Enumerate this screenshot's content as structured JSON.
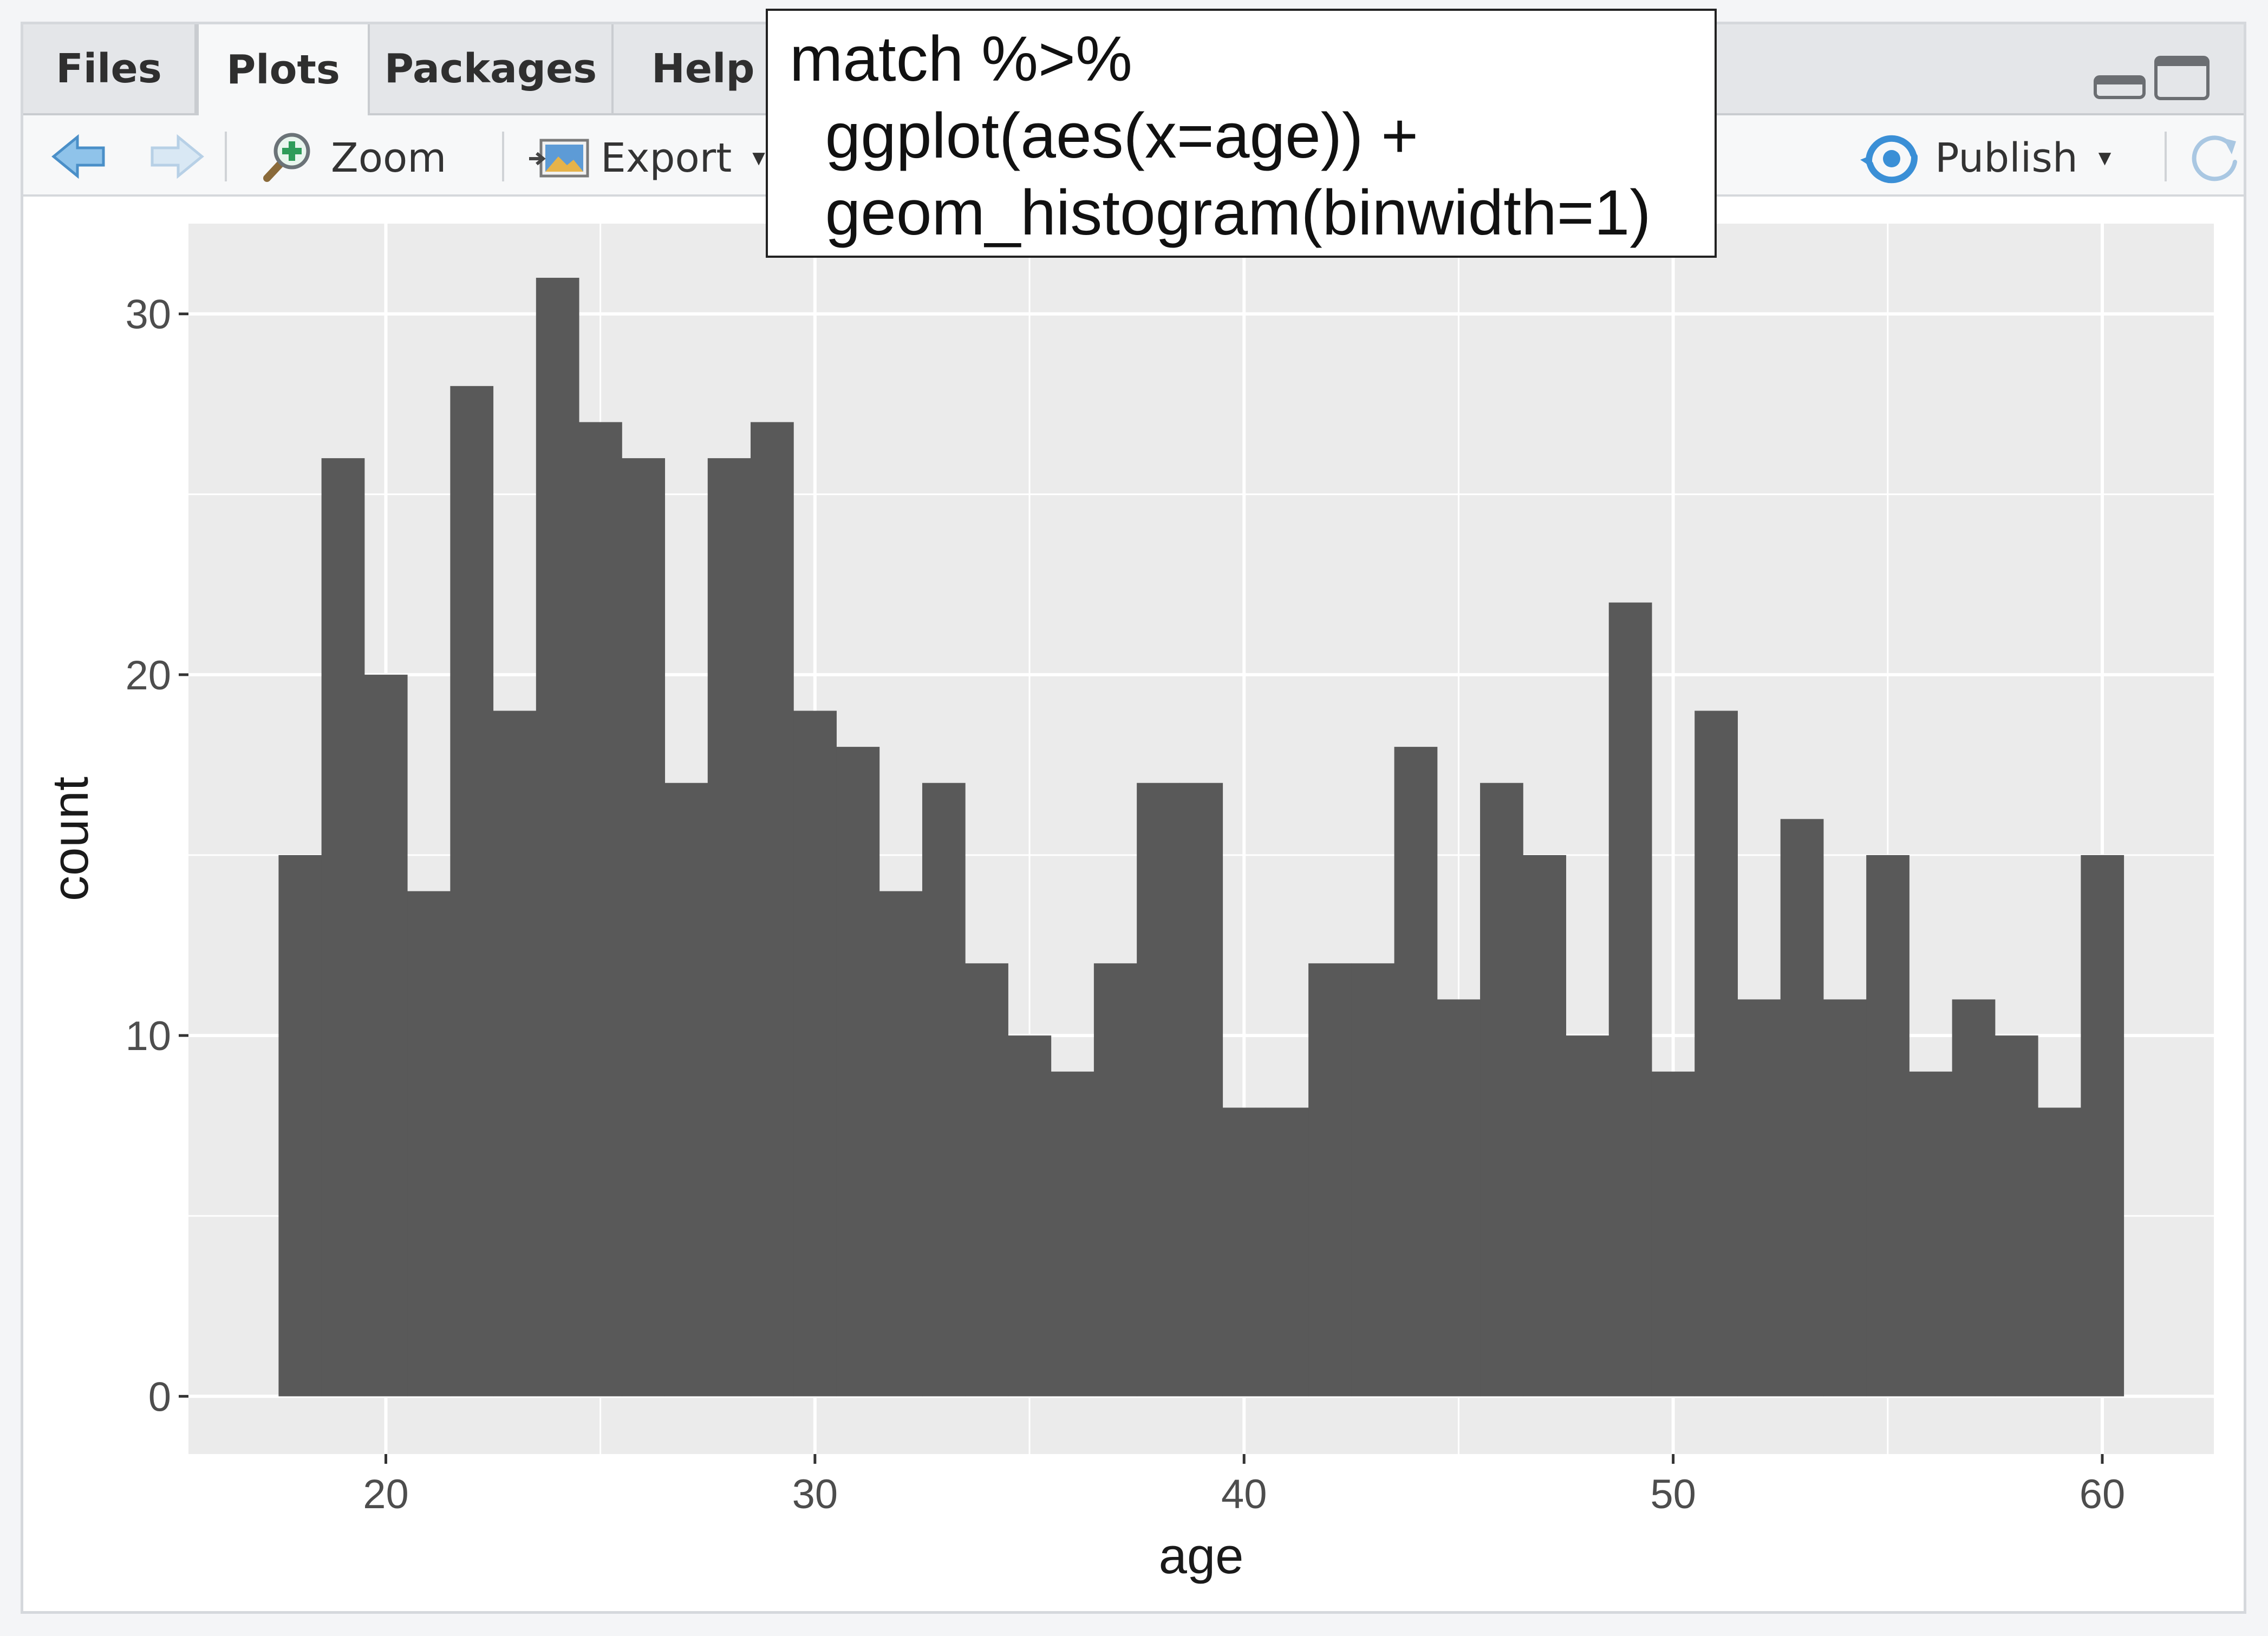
{
  "tabs": [
    {
      "label": "Files",
      "active": false
    },
    {
      "label": "Plots",
      "active": true
    },
    {
      "label": "Packages",
      "active": false
    },
    {
      "label": "Help",
      "active": false
    }
  ],
  "toolbar": {
    "zoom_label": "Zoom",
    "export_label": "Export",
    "publish_label": "Publish",
    "icons": [
      "back-arrow-icon",
      "forward-arrow-icon",
      "zoom-icon",
      "export-icon",
      "publish-icon",
      "refresh-icon",
      "minimize-icon",
      "maximize-icon"
    ]
  },
  "code_tooltip": {
    "lines": [
      "match %>%",
      "  ggplot(aes(x=age)) +",
      "  geom_histogram(binwidth=1)"
    ]
  },
  "colors": {
    "bar": "#595959",
    "panel": "#ebebeb",
    "grid": "#ffffff",
    "accent": "#3a8fd6"
  },
  "chart_data": {
    "type": "bar",
    "subtype": "histogram",
    "binwidth": 1,
    "x": [
      18,
      19,
      20,
      21,
      22,
      23,
      24,
      25,
      26,
      27,
      28,
      29,
      30,
      31,
      32,
      33,
      34,
      35,
      36,
      37,
      38,
      39,
      40,
      41,
      42,
      43,
      44,
      45,
      46,
      47,
      48,
      49,
      50,
      51,
      52,
      53,
      54,
      55,
      56,
      57,
      58,
      59,
      60
    ],
    "values": [
      15,
      26,
      20,
      14,
      28,
      19,
      31,
      27,
      26,
      17,
      26,
      27,
      19,
      18,
      14,
      17,
      12,
      10,
      9,
      12,
      17,
      17,
      8,
      8,
      12,
      12,
      18,
      11,
      17,
      15,
      10,
      22,
      9,
      19,
      11,
      16,
      11,
      15,
      9,
      11,
      10,
      8,
      15
    ],
    "xlabel": "age",
    "ylabel": "count",
    "xlim": [
      15.4,
      62.6
    ],
    "ylim": [
      -1.6,
      32.5
    ],
    "xticks": [
      20,
      30,
      40,
      50,
      60
    ],
    "yticks": [
      0,
      10,
      20,
      30
    ],
    "grid": true
  }
}
